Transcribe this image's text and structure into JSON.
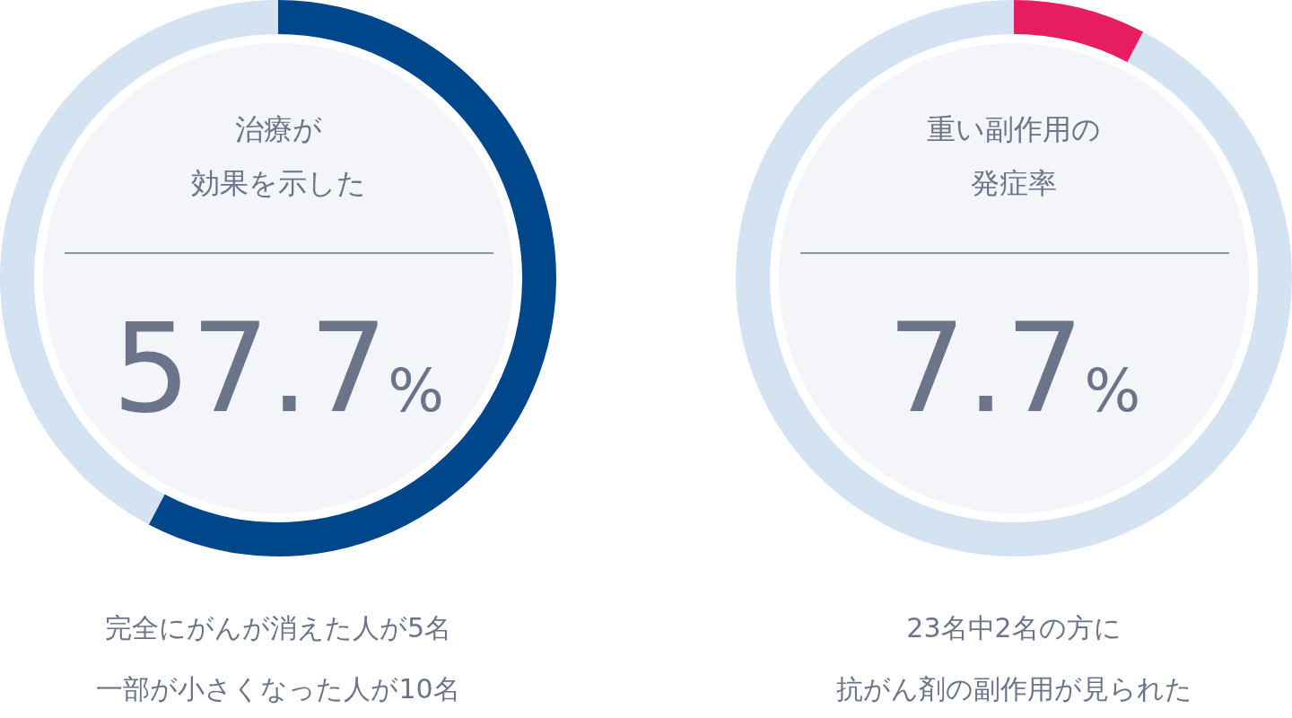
{
  "chart_data": [
    {
      "type": "donut",
      "title": "治療が",
      "subtitle": "効果を示した",
      "categories": [
        null,
        null
      ],
      "values": [
        57.7,
        42.3
      ],
      "colors": [
        "#00468b",
        "#d4e3f1"
      ],
      "annotations": [
        "57.7%",
        "完全にがんが消えた人が5名",
        "一部が小さくなった人が10名"
      ]
    },
    {
      "type": "donut",
      "title": "重い副作用の",
      "subtitle": "発症率",
      "categories": [
        null,
        null
      ],
      "values": [
        7.7,
        92.3
      ],
      "colors": [
        "#e61e5f",
        "#d4e3f1"
      ],
      "annotations": [
        "7.7%",
        "23名中2名の方に",
        "抗がん剤の副作用が見られた"
      ]
    }
  ]
}
